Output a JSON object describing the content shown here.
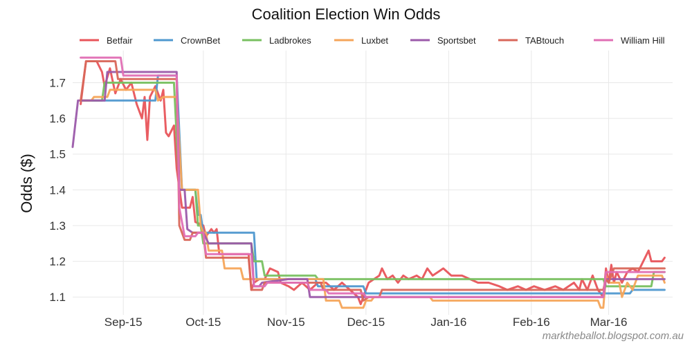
{
  "chart_data": {
    "type": "line",
    "title": "Coalition Election Win Odds",
    "ylabel": "Odds ($)",
    "xlabel": "",
    "x_range": [
      "2015-08-13",
      "2016-03-25"
    ],
    "ylim": [
      1.05,
      1.79
    ],
    "y_ticks": [
      1.1,
      1.2,
      1.3,
      1.4,
      1.5,
      1.6,
      1.7
    ],
    "x_ticks": [
      {
        "date": "2015-09-01",
        "label": "Sep-15"
      },
      {
        "date": "2015-10-01",
        "label": "Oct-15"
      },
      {
        "date": "2015-11-01",
        "label": "Nov-15"
      },
      {
        "date": "2015-12-01",
        "label": "Dec-15"
      },
      {
        "date": "2016-01-01",
        "label": "Jan-16"
      },
      {
        "date": "2016-02-01",
        "label": "Feb-16"
      },
      {
        "date": "2016-03-01",
        "label": "Mar-16"
      }
    ],
    "grid": true,
    "legend_position": "top",
    "series": [
      {
        "name": "Betfair",
        "color": "#e8545a",
        "points": [
          [
            "2015-08-16",
            1.64
          ],
          [
            "2015-08-18",
            1.76
          ],
          [
            "2015-08-22",
            1.76
          ],
          [
            "2015-08-24",
            1.73
          ],
          [
            "2015-08-25",
            1.69
          ],
          [
            "2015-08-27",
            1.74
          ],
          [
            "2015-08-29",
            1.67
          ],
          [
            "2015-08-31",
            1.71
          ],
          [
            "2015-09-02",
            1.68
          ],
          [
            "2015-09-04",
            1.7
          ],
          [
            "2015-09-06",
            1.64
          ],
          [
            "2015-09-08",
            1.6
          ],
          [
            "2015-09-09",
            1.66
          ],
          [
            "2015-09-10",
            1.54
          ],
          [
            "2015-09-11",
            1.66
          ],
          [
            "2015-09-13",
            1.69
          ],
          [
            "2015-09-15",
            1.65
          ],
          [
            "2015-09-16",
            1.68
          ],
          [
            "2015-09-17",
            1.56
          ],
          [
            "2015-09-18",
            1.55
          ],
          [
            "2015-09-20",
            1.58
          ],
          [
            "2015-09-21",
            1.46
          ],
          [
            "2015-09-23",
            1.35
          ],
          [
            "2015-09-26",
            1.35
          ],
          [
            "2015-09-27",
            1.38
          ],
          [
            "2015-09-28",
            1.31
          ],
          [
            "2015-10-01",
            1.3
          ],
          [
            "2015-10-02",
            1.27
          ],
          [
            "2015-10-04",
            1.29
          ],
          [
            "2015-10-05",
            1.28
          ],
          [
            "2015-10-06",
            1.29
          ],
          [
            "2015-10-07",
            1.22
          ],
          [
            "2015-10-18",
            1.22
          ],
          [
            "2015-10-19",
            1.12
          ],
          [
            "2015-10-20",
            1.14
          ],
          [
            "2015-10-22",
            1.15
          ],
          [
            "2015-10-24",
            1.15
          ],
          [
            "2015-10-26",
            1.18
          ],
          [
            "2015-10-29",
            1.17
          ],
          [
            "2015-10-30",
            1.14
          ],
          [
            "2015-11-02",
            1.13
          ],
          [
            "2015-11-04",
            1.12
          ],
          [
            "2015-11-07",
            1.14
          ],
          [
            "2015-11-10",
            1.12
          ],
          [
            "2015-11-13",
            1.14
          ],
          [
            "2015-11-16",
            1.14
          ],
          [
            "2015-11-19",
            1.12
          ],
          [
            "2015-11-22",
            1.14
          ],
          [
            "2015-11-25",
            1.12
          ],
          [
            "2015-11-28",
            1.1
          ],
          [
            "2015-11-29",
            1.08
          ],
          [
            "2015-11-30",
            1.1
          ],
          [
            "2015-12-02",
            1.14
          ],
          [
            "2015-12-04",
            1.15
          ],
          [
            "2015-12-06",
            1.16
          ],
          [
            "2015-12-07",
            1.18
          ],
          [
            "2015-12-09",
            1.15
          ],
          [
            "2015-12-11",
            1.16
          ],
          [
            "2015-12-13",
            1.14
          ],
          [
            "2015-12-15",
            1.16
          ],
          [
            "2015-12-17",
            1.15
          ],
          [
            "2015-12-20",
            1.16
          ],
          [
            "2015-12-22",
            1.15
          ],
          [
            "2015-12-24",
            1.18
          ],
          [
            "2015-12-26",
            1.16
          ],
          [
            "2015-12-28",
            1.17
          ],
          [
            "2015-12-30",
            1.18
          ],
          [
            "2016-01-02",
            1.16
          ],
          [
            "2016-01-06",
            1.16
          ],
          [
            "2016-01-09",
            1.15
          ],
          [
            "2016-01-12",
            1.14
          ],
          [
            "2016-01-16",
            1.14
          ],
          [
            "2016-01-20",
            1.13
          ],
          [
            "2016-01-23",
            1.12
          ],
          [
            "2016-01-27",
            1.13
          ],
          [
            "2016-01-30",
            1.12
          ],
          [
            "2016-02-02",
            1.13
          ],
          [
            "2016-02-06",
            1.12
          ],
          [
            "2016-02-10",
            1.13
          ],
          [
            "2016-02-13",
            1.12
          ],
          [
            "2016-02-17",
            1.14
          ],
          [
            "2016-02-19",
            1.12
          ],
          [
            "2016-02-20",
            1.15
          ],
          [
            "2016-02-22",
            1.12
          ],
          [
            "2016-02-24",
            1.16
          ],
          [
            "2016-02-26",
            1.12
          ],
          [
            "2016-02-28",
            1.1
          ],
          [
            "2016-02-29",
            1.18
          ],
          [
            "2016-03-01",
            1.14
          ],
          [
            "2016-03-02",
            1.19
          ],
          [
            "2016-03-03",
            1.14
          ],
          [
            "2016-03-04",
            1.17
          ],
          [
            "2016-03-06",
            1.14
          ],
          [
            "2016-03-08",
            1.17
          ],
          [
            "2016-03-10",
            1.18
          ],
          [
            "2016-03-12",
            1.17
          ],
          [
            "2016-03-14",
            1.2
          ],
          [
            "2016-03-16",
            1.23
          ],
          [
            "2016-03-17",
            1.2
          ],
          [
            "2016-03-20",
            1.2
          ],
          [
            "2016-03-21",
            1.2
          ],
          [
            "2016-03-22",
            1.21
          ]
        ]
      },
      {
        "name": "CrownBet",
        "color": "#4f98cf",
        "points": [
          [
            "2015-08-16",
            1.65
          ],
          [
            "2015-09-13",
            1.65
          ],
          [
            "2015-09-14",
            1.72
          ],
          [
            "2015-09-21",
            1.72
          ],
          [
            "2015-09-23",
            1.4
          ],
          [
            "2015-09-28",
            1.4
          ],
          [
            "2015-09-29",
            1.33
          ],
          [
            "2015-09-30",
            1.33
          ],
          [
            "2015-10-01",
            1.28
          ],
          [
            "2015-10-20",
            1.28
          ],
          [
            "2015-10-21",
            1.15
          ],
          [
            "2015-11-12",
            1.15
          ],
          [
            "2015-11-13",
            1.13
          ],
          [
            "2015-11-30",
            1.13
          ],
          [
            "2015-12-01",
            1.11
          ],
          [
            "2016-03-09",
            1.11
          ],
          [
            "2016-03-10",
            1.12
          ],
          [
            "2016-03-22",
            1.12
          ]
        ]
      },
      {
        "name": "Ladbrokes",
        "color": "#78c060",
        "points": [
          [
            "2015-08-16",
            1.65
          ],
          [
            "2015-08-24",
            1.65
          ],
          [
            "2015-08-25",
            1.7
          ],
          [
            "2015-09-20",
            1.7
          ],
          [
            "2015-09-22",
            1.4
          ],
          [
            "2015-09-28",
            1.4
          ],
          [
            "2015-09-29",
            1.3
          ],
          [
            "2015-09-30",
            1.3
          ],
          [
            "2015-10-01",
            1.25
          ],
          [
            "2015-10-19",
            1.25
          ],
          [
            "2015-10-20",
            1.2
          ],
          [
            "2015-10-23",
            1.2
          ],
          [
            "2015-10-24",
            1.16
          ],
          [
            "2015-11-12",
            1.16
          ],
          [
            "2015-11-13",
            1.15
          ],
          [
            "2016-02-28",
            1.15
          ],
          [
            "2016-02-29",
            1.13
          ],
          [
            "2016-03-17",
            1.13
          ],
          [
            "2016-03-18",
            1.17
          ],
          [
            "2016-03-22",
            1.17
          ]
        ]
      },
      {
        "name": "Luxbet",
        "color": "#f5a55a",
        "points": [
          [
            "2015-08-16",
            1.65
          ],
          [
            "2015-08-20",
            1.65
          ],
          [
            "2015-08-21",
            1.66
          ],
          [
            "2015-08-26",
            1.66
          ],
          [
            "2015-08-27",
            1.68
          ],
          [
            "2015-09-13",
            1.68
          ],
          [
            "2015-09-14",
            1.65
          ],
          [
            "2015-09-16",
            1.66
          ],
          [
            "2015-09-21",
            1.66
          ],
          [
            "2015-09-23",
            1.4
          ],
          [
            "2015-09-29",
            1.4
          ],
          [
            "2015-09-30",
            1.3
          ],
          [
            "2015-10-01",
            1.28
          ],
          [
            "2015-10-02",
            1.28
          ],
          [
            "2015-10-03",
            1.23
          ],
          [
            "2015-10-08",
            1.23
          ],
          [
            "2015-10-09",
            1.18
          ],
          [
            "2015-10-15",
            1.18
          ],
          [
            "2015-10-16",
            1.15
          ],
          [
            "2015-11-15",
            1.15
          ],
          [
            "2015-11-16",
            1.09
          ],
          [
            "2015-11-21",
            1.09
          ],
          [
            "2015-11-22",
            1.07
          ],
          [
            "2015-11-30",
            1.07
          ],
          [
            "2015-12-01",
            1.09
          ],
          [
            "2015-12-03",
            1.09
          ],
          [
            "2015-12-04",
            1.1
          ],
          [
            "2015-12-25",
            1.1
          ],
          [
            "2015-12-26",
            1.09
          ],
          [
            "2016-02-26",
            1.09
          ],
          [
            "2016-02-27",
            1.07
          ],
          [
            "2016-02-28",
            1.07
          ],
          [
            "2016-02-29",
            1.16
          ],
          [
            "2016-03-01",
            1.14
          ],
          [
            "2016-03-05",
            1.14
          ],
          [
            "2016-03-06",
            1.1
          ],
          [
            "2016-03-08",
            1.14
          ],
          [
            "2016-03-10",
            1.12
          ],
          [
            "2016-03-12",
            1.16
          ],
          [
            "2016-03-21",
            1.16
          ],
          [
            "2016-03-22",
            1.14
          ]
        ]
      },
      {
        "name": "Sportsbet",
        "color": "#9b5aaa",
        "points": [
          [
            "2015-08-13",
            1.52
          ],
          [
            "2015-08-15",
            1.65
          ],
          [
            "2015-08-25",
            1.65
          ],
          [
            "2015-08-26",
            1.73
          ],
          [
            "2015-09-21",
            1.73
          ],
          [
            "2015-09-22",
            1.4
          ],
          [
            "2015-09-24",
            1.4
          ],
          [
            "2015-09-25",
            1.29
          ],
          [
            "2015-09-27",
            1.28
          ],
          [
            "2015-10-01",
            1.28
          ],
          [
            "2015-10-03",
            1.25
          ],
          [
            "2015-10-19",
            1.25
          ],
          [
            "2015-10-20",
            1.13
          ],
          [
            "2015-10-22",
            1.13
          ],
          [
            "2015-10-23",
            1.14
          ],
          [
            "2015-11-02",
            1.15
          ],
          [
            "2015-11-09",
            1.15
          ],
          [
            "2015-11-10",
            1.1
          ],
          [
            "2015-11-30",
            1.1
          ],
          [
            "2015-12-01",
            1.1
          ],
          [
            "2016-02-28",
            1.1
          ],
          [
            "2016-02-29",
            1.15
          ],
          [
            "2016-03-22",
            1.15
          ]
        ]
      },
      {
        "name": "TABtouch",
        "color": "#d9675a",
        "points": [
          [
            "2015-08-16",
            1.65
          ],
          [
            "2015-08-18",
            1.76
          ],
          [
            "2015-08-29",
            1.76
          ],
          [
            "2015-08-30",
            1.71
          ],
          [
            "2015-09-21",
            1.71
          ],
          [
            "2015-09-22",
            1.3
          ],
          [
            "2015-09-24",
            1.26
          ],
          [
            "2015-09-26",
            1.26
          ],
          [
            "2015-09-27",
            1.28
          ],
          [
            "2015-10-01",
            1.28
          ],
          [
            "2015-10-02",
            1.21
          ],
          [
            "2015-10-18",
            1.21
          ],
          [
            "2015-10-19",
            1.12
          ],
          [
            "2015-10-23",
            1.12
          ],
          [
            "2015-10-24",
            1.14
          ],
          [
            "2015-11-14",
            1.14
          ],
          [
            "2015-11-15",
            1.12
          ],
          [
            "2015-11-29",
            1.12
          ],
          [
            "2015-11-30",
            1.09
          ],
          [
            "2015-12-02",
            1.1
          ],
          [
            "2015-12-06",
            1.1
          ],
          [
            "2015-12-07",
            1.12
          ],
          [
            "2015-12-23",
            1.12
          ],
          [
            "2015-12-28",
            1.12
          ],
          [
            "2016-02-28",
            1.12
          ],
          [
            "2016-02-29",
            1.15
          ],
          [
            "2016-03-01",
            1.14
          ],
          [
            "2016-03-03",
            1.18
          ],
          [
            "2016-03-22",
            1.18
          ]
        ]
      },
      {
        "name": "William Hill",
        "color": "#e06fb4",
        "points": [
          [
            "2015-08-16",
            1.77
          ],
          [
            "2015-08-31",
            1.77
          ],
          [
            "2015-09-01",
            1.72
          ],
          [
            "2015-09-21",
            1.72
          ],
          [
            "2015-09-22",
            1.35
          ],
          [
            "2015-09-24",
            1.27
          ],
          [
            "2015-09-28",
            1.27
          ],
          [
            "2015-09-29",
            1.28
          ],
          [
            "2015-10-01",
            1.28
          ],
          [
            "2015-10-02",
            1.22
          ],
          [
            "2015-10-19",
            1.22
          ],
          [
            "2015-10-20",
            1.13
          ],
          [
            "2015-10-24",
            1.13
          ],
          [
            "2015-10-25",
            1.14
          ],
          [
            "2015-11-09",
            1.14
          ],
          [
            "2015-11-10",
            1.12
          ],
          [
            "2015-11-16",
            1.12
          ],
          [
            "2015-11-17",
            1.11
          ],
          [
            "2015-11-30",
            1.11
          ],
          [
            "2015-12-01",
            1.1
          ],
          [
            "2016-02-28",
            1.1
          ],
          [
            "2016-02-29",
            1.17
          ],
          [
            "2016-03-22",
            1.17
          ]
        ]
      }
    ]
  },
  "credit": "marktheballot.blogspot.com.au"
}
